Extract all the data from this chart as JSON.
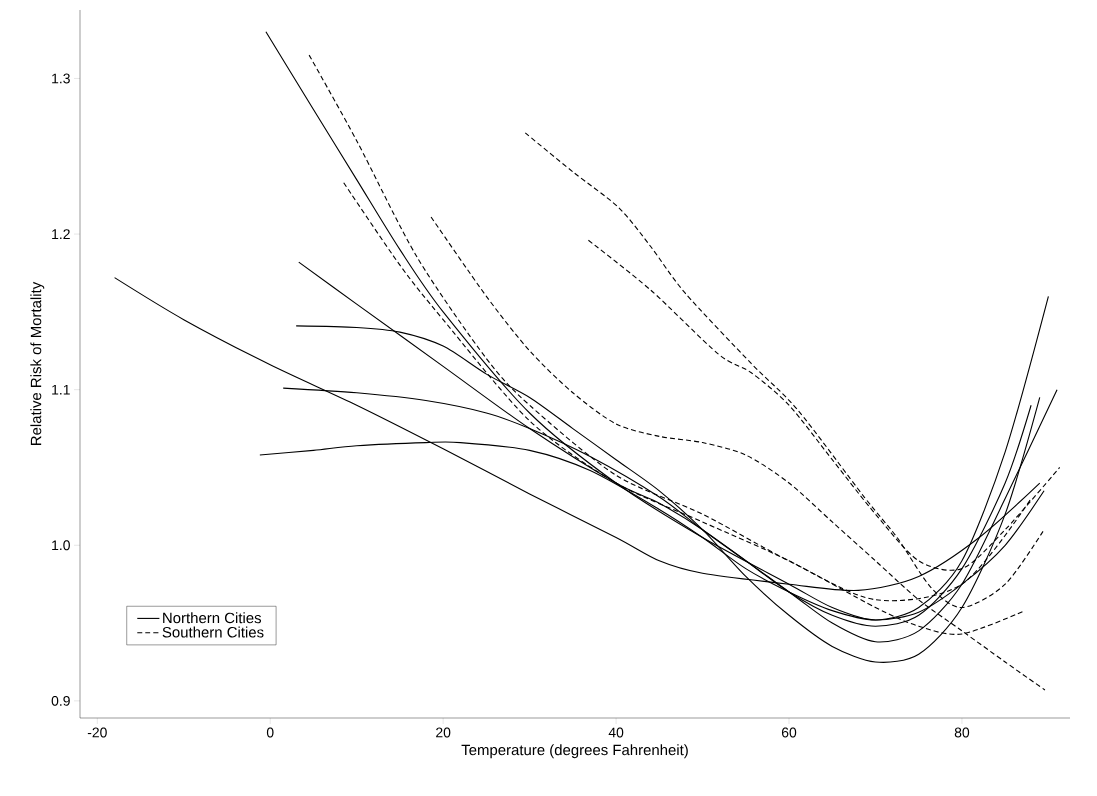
{
  "chart_data": {
    "type": "line",
    "xlabel": "Temperature (degrees Fahrenheit)",
    "ylabel": "Relative Risk of Mortality",
    "xlim": [
      -22,
      92.5
    ],
    "ylim": [
      0.889,
      1.344
    ],
    "xticks": [
      -20,
      0,
      20,
      40,
      60,
      80
    ],
    "yticks": [
      {
        "value": 0.9,
        "label": "0.9"
      },
      {
        "value": 1.0,
        "label": "1.0"
      },
      {
        "value": 1.1,
        "label": "1.1"
      },
      {
        "value": 1.2,
        "label": "1.2"
      },
      {
        "value": 1.3,
        "label": "1.3"
      }
    ],
    "legend": "bottom left",
    "marker": "none",
    "series": [
      {
        "name": "Northern Cities",
        "color": "#000000",
        "line_style": "solid",
        "x": [
          -18,
          -10,
          0,
          10,
          20,
          30,
          40,
          45,
          50,
          60,
          68,
          75,
          82,
          89
        ],
        "values": [
          1.172,
          1.145,
          1.116,
          1.09,
          1.062,
          1.033,
          1.005,
          0.99,
          0.982,
          0.975,
          0.971,
          0.98,
          1.005,
          1.04
        ]
      },
      {
        "color": "#000000",
        "line_style": "solid",
        "x": [
          -0.5,
          5,
          10,
          15,
          20,
          30,
          40,
          50,
          60,
          65,
          70,
          75,
          80,
          85,
          90
        ],
        "values": [
          1.33,
          1.28,
          1.235,
          1.19,
          1.15,
          1.085,
          1.04,
          1.005,
          0.975,
          0.96,
          0.952,
          0.96,
          0.99,
          1.06,
          1.16
        ]
      },
      {
        "color": "#000000",
        "line_style": "solid",
        "x": [
          3.3,
          10,
          20,
          30,
          40,
          45,
          50,
          60,
          65,
          70,
          75,
          80,
          85,
          91
        ],
        "values": [
          1.182,
          1.155,
          1.115,
          1.075,
          1.04,
          1.027,
          1.01,
          0.97,
          0.95,
          0.938,
          0.945,
          0.975,
          1.03,
          1.1
        ]
      },
      {
        "color": "#000000",
        "line_style": "solid",
        "x": [
          3,
          10,
          15,
          20,
          25,
          30,
          35,
          40,
          45,
          50,
          55,
          60,
          65,
          70,
          75,
          80,
          85,
          89
        ],
        "values": [
          1.141,
          1.14,
          1.137,
          1.128,
          1.11,
          1.095,
          1.075,
          1.055,
          1.035,
          1.01,
          0.98,
          0.955,
          0.935,
          0.925,
          0.93,
          0.96,
          1.02,
          1.095
        ]
      },
      {
        "color": "#000000",
        "line_style": "solid",
        "x": [
          1.5,
          10,
          18,
          25,
          30,
          37,
          45,
          50,
          55,
          60,
          65,
          70,
          75,
          80,
          85,
          88
        ],
        "values": [
          1.101,
          1.098,
          1.093,
          1.085,
          1.075,
          1.057,
          1.031,
          1.01,
          0.99,
          0.97,
          0.955,
          0.948,
          0.955,
          0.985,
          1.04,
          1.09
        ]
      },
      {
        "color": "#000000",
        "line_style": "solid",
        "x": [
          -1.2,
          5,
          10,
          18,
          22,
          30,
          37,
          45,
          50,
          55,
          60,
          65,
          70,
          75,
          80,
          85,
          89.5
        ],
        "values": [
          1.058,
          1.061,
          1.064,
          1.066,
          1.066,
          1.061,
          1.048,
          1.023,
          1.005,
          0.985,
          0.97,
          0.958,
          0.952,
          0.957,
          0.975,
          1.0,
          1.035
        ]
      },
      {
        "name": "Southern Cities",
        "color": "#000000",
        "line_style": "dashed",
        "x": [
          4.5,
          10,
          17,
          25,
          30,
          40,
          50,
          60,
          70,
          80,
          88
        ],
        "values": [
          1.315,
          1.26,
          1.185,
          1.12,
          1.09,
          1.045,
          1.02,
          0.99,
          0.965,
          0.975,
          1.03
        ]
      },
      {
        "color": "#000000",
        "line_style": "dashed",
        "x": [
          8.5,
          15,
          20,
          30,
          40,
          50,
          60,
          70,
          75,
          80,
          87.3
        ],
        "values": [
          1.233,
          1.18,
          1.145,
          1.08,
          1.04,
          1.015,
          0.99,
          0.96,
          0.948,
          0.943,
          0.958
        ]
      },
      {
        "color": "#000000",
        "line_style": "dashed",
        "x": [
          18.6,
          25,
          30,
          35,
          40,
          45,
          50,
          55,
          60,
          65,
          70,
          75,
          80,
          85,
          89.6
        ],
        "values": [
          1.211,
          1.16,
          1.125,
          1.098,
          1.078,
          1.07,
          1.066,
          1.058,
          1.04,
          1.015,
          0.99,
          0.965,
          0.945,
          0.925,
          0.907
        ]
      },
      {
        "color": "#000000",
        "line_style": "dashed",
        "x": [
          29.5,
          35,
          40.3,
          44,
          48,
          55.6,
          61,
          68.7,
          72.5,
          76.4,
          80,
          85,
          89.5
        ],
        "values": [
          1.265,
          1.24,
          1.217,
          1.192,
          1.162,
          1.117,
          1.087,
          1.031,
          1.005,
          0.973,
          0.96,
          0.975,
          1.01
        ]
      },
      {
        "color": "#000000",
        "line_style": "dashed",
        "x": [
          36.8,
          44,
          51.8,
          55.6,
          60,
          65,
          70,
          75,
          80,
          85,
          91.3
        ],
        "values": [
          1.196,
          1.164,
          1.123,
          1.111,
          1.09,
          1.055,
          1.02,
          0.99,
          0.985,
          1.01,
          1.05
        ]
      }
    ]
  }
}
